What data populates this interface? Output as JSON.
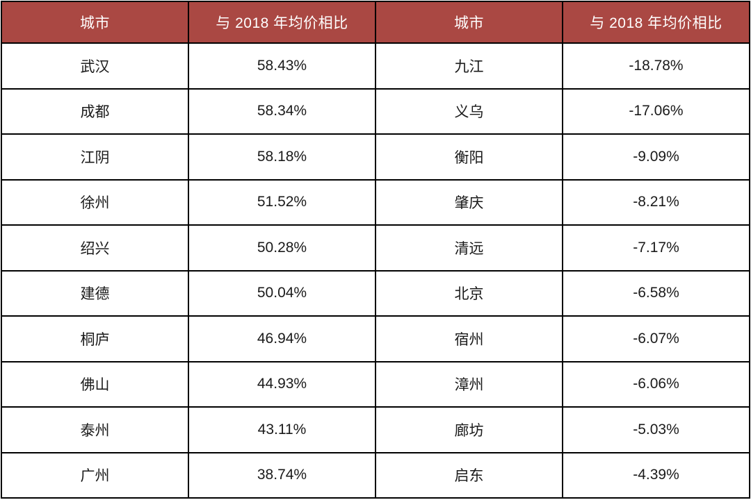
{
  "table": {
    "headers": [
      "城市",
      "与 2018 年均价相比",
      "城市",
      "与 2018 年均价相比"
    ],
    "rows": [
      [
        "武汉",
        "58.43%",
        "九江",
        "-18.78%"
      ],
      [
        "成都",
        "58.34%",
        "义乌",
        "-17.06%"
      ],
      [
        "江阴",
        "58.18%",
        "衡阳",
        "-9.09%"
      ],
      [
        "徐州",
        "51.52%",
        "肇庆",
        "-8.21%"
      ],
      [
        "绍兴",
        "50.28%",
        "清远",
        "-7.17%"
      ],
      [
        "建德",
        "50.04%",
        "北京",
        "-6.58%"
      ],
      [
        "桐庐",
        "46.94%",
        "宿州",
        "-6.07%"
      ],
      [
        "佛山",
        "44.93%",
        "漳州",
        "-6.06%"
      ],
      [
        "泰州",
        "43.11%",
        "廊坊",
        "-5.03%"
      ],
      [
        "广州",
        "38.74%",
        "启东",
        "-4.39%"
      ]
    ]
  },
  "colors": {
    "header_bg": "#AA4843",
    "header_text": "#FFFFFF",
    "border": "#000000",
    "body_bg": "#FFFFFF",
    "body_text": "#1A1A1A"
  },
  "chart_data": {
    "type": "table",
    "columns": [
      "城市",
      "与 2018 年均价相比",
      "城市",
      "与 2018 年均价相比"
    ],
    "rows": [
      [
        "武汉",
        "58.43%",
        "九江",
        "-18.78%"
      ],
      [
        "成都",
        "58.34%",
        "义乌",
        "-17.06%"
      ],
      [
        "江阴",
        "58.18%",
        "衡阳",
        "-9.09%"
      ],
      [
        "徐州",
        "51.52%",
        "肇庆",
        "-8.21%"
      ],
      [
        "绍兴",
        "50.28%",
        "清远",
        "-7.17%"
      ],
      [
        "建德",
        "50.04%",
        "北京",
        "-6.58%"
      ],
      [
        "桐庐",
        "46.94%",
        "宿州",
        "-6.07%"
      ],
      [
        "佛山",
        "44.93%",
        "漳州",
        "-6.06%"
      ],
      [
        "泰州",
        "43.11%",
        "廊坊",
        "-5.03%"
      ],
      [
        "广州",
        "38.74%",
        "启东",
        "-4.39%"
      ]
    ],
    "left_cities": [
      "武汉",
      "成都",
      "江阴",
      "徐州",
      "绍兴",
      "建德",
      "桐庐",
      "佛山",
      "泰州",
      "广州"
    ],
    "left_values_pct": [
      58.43,
      58.34,
      58.18,
      51.52,
      50.28,
      50.04,
      46.94,
      44.93,
      43.11,
      38.74
    ],
    "right_cities": [
      "九江",
      "义乌",
      "衡阳",
      "肇庆",
      "清远",
      "北京",
      "宿州",
      "漳州",
      "廊坊",
      "启东"
    ],
    "right_values_pct": [
      -18.78,
      -17.06,
      -9.09,
      -8.21,
      -7.17,
      -6.58,
      -6.07,
      -6.06,
      -5.03,
      -4.39
    ]
  }
}
